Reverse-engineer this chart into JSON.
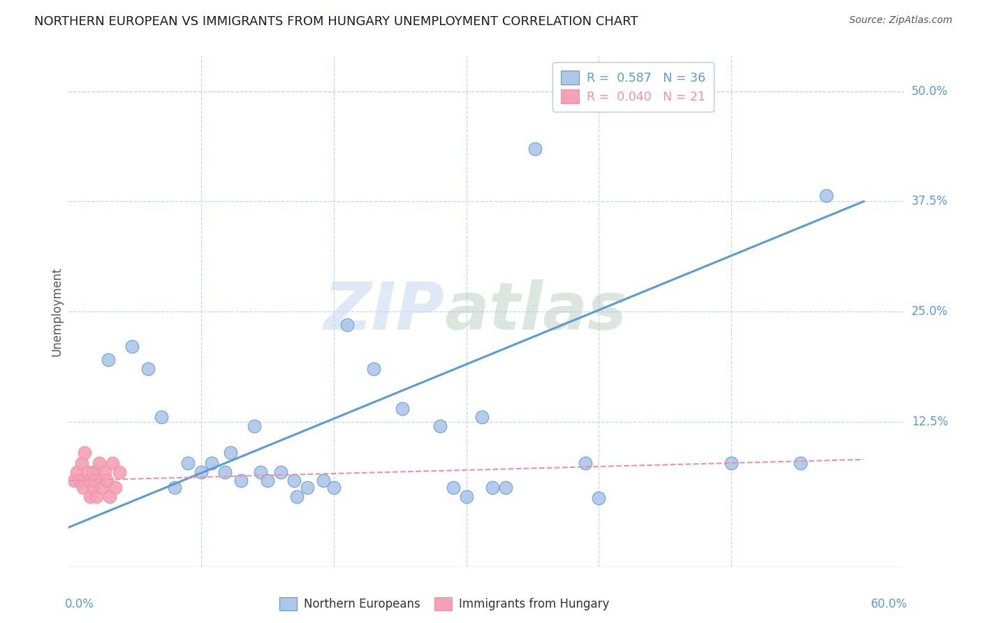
{
  "title": "NORTHERN EUROPEAN VS IMMIGRANTS FROM HUNGARY UNEMPLOYMENT CORRELATION CHART",
  "source": "Source: ZipAtlas.com",
  "ylabel": "Unemployment",
  "ytick_labels": [
    "12.5%",
    "25.0%",
    "37.5%",
    "50.0%"
  ],
  "ytick_values": [
    0.125,
    0.25,
    0.375,
    0.5
  ],
  "xlim": [
    0.0,
    0.63
  ],
  "ylim": [
    -0.04,
    0.54
  ],
  "blue_color": "#aec6e8",
  "pink_color": "#f4a0b5",
  "blue_line_color": "#5b9bd5",
  "pink_line_color": "#f090a8",
  "blue_scatter": [
    [
      0.02,
      0.068
    ],
    [
      0.03,
      0.195
    ],
    [
      0.048,
      0.21
    ],
    [
      0.06,
      0.185
    ],
    [
      0.07,
      0.13
    ],
    [
      0.08,
      0.05
    ],
    [
      0.09,
      0.078
    ],
    [
      0.1,
      0.068
    ],
    [
      0.108,
      0.078
    ],
    [
      0.118,
      0.068
    ],
    [
      0.122,
      0.09
    ],
    [
      0.13,
      0.058
    ],
    [
      0.14,
      0.12
    ],
    [
      0.145,
      0.068
    ],
    [
      0.15,
      0.058
    ],
    [
      0.16,
      0.068
    ],
    [
      0.17,
      0.058
    ],
    [
      0.172,
      0.04
    ],
    [
      0.18,
      0.05
    ],
    [
      0.192,
      0.058
    ],
    [
      0.2,
      0.05
    ],
    [
      0.21,
      0.235
    ],
    [
      0.23,
      0.185
    ],
    [
      0.252,
      0.14
    ],
    [
      0.28,
      0.12
    ],
    [
      0.29,
      0.05
    ],
    [
      0.3,
      0.04
    ],
    [
      0.312,
      0.13
    ],
    [
      0.32,
      0.05
    ],
    [
      0.33,
      0.05
    ],
    [
      0.352,
      0.435
    ],
    [
      0.39,
      0.078
    ],
    [
      0.4,
      0.038
    ],
    [
      0.5,
      0.078
    ],
    [
      0.552,
      0.078
    ],
    [
      0.572,
      0.382
    ]
  ],
  "pink_scatter": [
    [
      0.004,
      0.058
    ],
    [
      0.006,
      0.068
    ],
    [
      0.008,
      0.058
    ],
    [
      0.01,
      0.078
    ],
    [
      0.011,
      0.05
    ],
    [
      0.012,
      0.09
    ],
    [
      0.014,
      0.068
    ],
    [
      0.015,
      0.058
    ],
    [
      0.016,
      0.04
    ],
    [
      0.018,
      0.068
    ],
    [
      0.019,
      0.05
    ],
    [
      0.02,
      0.058
    ],
    [
      0.021,
      0.04
    ],
    [
      0.023,
      0.078
    ],
    [
      0.025,
      0.05
    ],
    [
      0.027,
      0.068
    ],
    [
      0.029,
      0.058
    ],
    [
      0.031,
      0.04
    ],
    [
      0.033,
      0.078
    ],
    [
      0.035,
      0.05
    ],
    [
      0.038,
      0.068
    ]
  ],
  "blue_trend_x": [
    0.0,
    0.6
  ],
  "blue_trend_y": [
    0.005,
    0.375
  ],
  "pink_trend_x": [
    0.0,
    0.6
  ],
  "pink_trend_y": [
    0.058,
    0.082
  ],
  "watermark_zip": "ZIP",
  "watermark_atlas": "atlas",
  "background_color": "#ffffff",
  "grid_color": "#c8d4e8",
  "legend1_label": "R =  0.587   N = 36",
  "legend2_label": "R =  0.040   N = 21"
}
